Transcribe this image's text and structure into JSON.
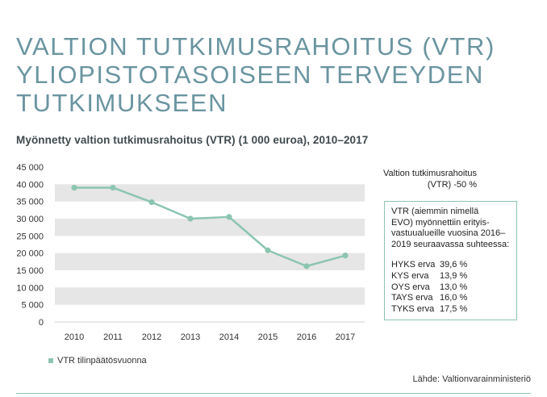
{
  "heading": {
    "lines": [
      "VALTION TUTKIMUSRAHOITUS (VTR)",
      "YLIOPISTOTASOISEEN TERVEYDEN",
      "TUTKIMUKSEEN"
    ]
  },
  "colors": {
    "heading": "#6a95a0",
    "series": "#8cc5b0",
    "band": "#e6e6e6"
  },
  "chart_data": {
    "type": "line",
    "title": "Myönnetty valtion tutkimusrahoitus (VTR) (1 000 euroa), 2010–2017",
    "categories": [
      "2010",
      "2011",
      "2012",
      "2013",
      "2014",
      "2015",
      "2016",
      "2017"
    ],
    "series": [
      {
        "name": "VTR tilinpäätösvuonna",
        "values": [
          39000,
          39000,
          34800,
          30000,
          30500,
          20800,
          16200,
          19300
        ]
      }
    ],
    "ylim": [
      0,
      45000
    ],
    "ytick_labels": [
      "0",
      "5 000",
      "10 000",
      "15 000",
      "20 000",
      "25 000",
      "30 000",
      "35 000",
      "40 000",
      "45 000"
    ],
    "grid": "alternating horizontal bands",
    "legend_position": "bottom-left",
    "xlabel": "",
    "ylabel": ""
  },
  "side_note": {
    "line1": "Valtion tutkimusrahoitus",
    "line2": "(VTR) -50 %"
  },
  "infobox": {
    "intro": [
      "VTR (aiemmin nimellä",
      "EVO) myönnettiin erityis-",
      "vastuualueille vuosina 2016–",
      "2019 seuraavassa suhteessa:"
    ],
    "rows": [
      {
        "name": "HYKS erva",
        "value": "39,6 %"
      },
      {
        "name": "KYS erva",
        "value": "13,9 %"
      },
      {
        "name": "OYS erva",
        "value": "13,0 %"
      },
      {
        "name": "TAYS erva",
        "value": "16,0 %"
      },
      {
        "name": "TYKS erva",
        "value": "17,5 %"
      }
    ]
  },
  "source": "Lähde: Valtionvarainministeriö"
}
